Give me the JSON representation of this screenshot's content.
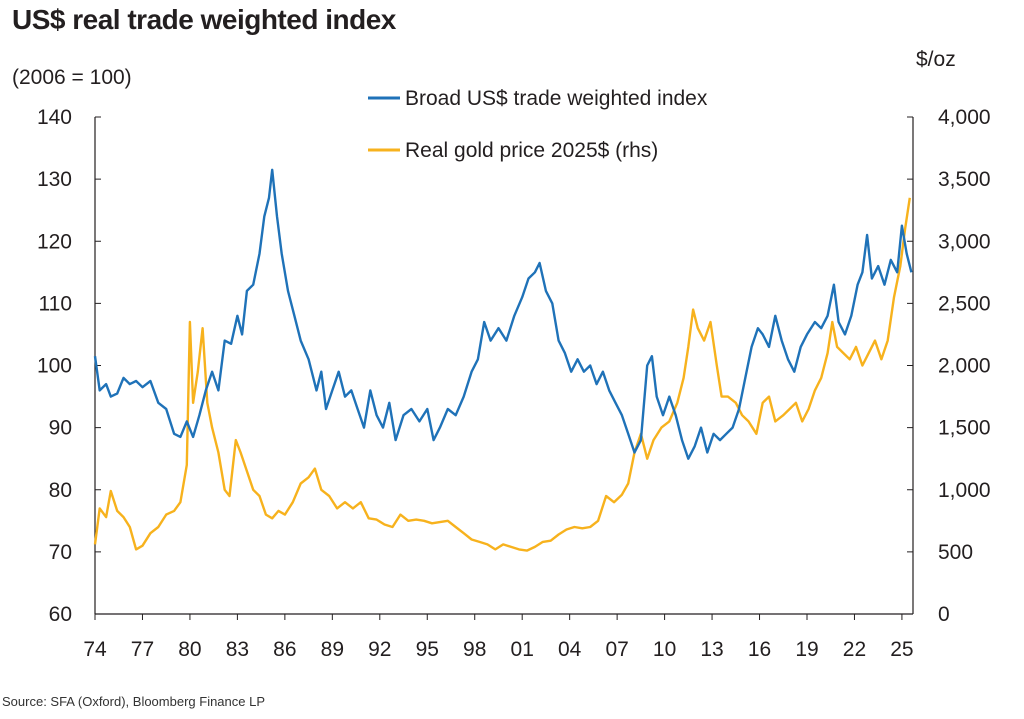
{
  "title": "US$ real trade weighted index",
  "left_unit": "(2006 = 100)",
  "right_unit": "$/oz",
  "source": "Source: SFA (Oxford), Bloomberg Finance LP",
  "chart_data": {
    "type": "line",
    "title": "US$ real trade weighted index",
    "xlabel": "",
    "x_ticks": [
      "74",
      "77",
      "80",
      "83",
      "86",
      "89",
      "92",
      "95",
      "98",
      "01",
      "04",
      "07",
      "10",
      "13",
      "16",
      "19",
      "22",
      "25"
    ],
    "x_tick_years": [
      1974,
      1977,
      1980,
      1983,
      1986,
      1989,
      1992,
      1995,
      1998,
      2001,
      2004,
      2007,
      2010,
      2013,
      2016,
      2019,
      2022,
      2025
    ],
    "xlim": [
      1974,
      2025.7
    ],
    "y_left": {
      "label": "(2006 = 100)",
      "lim": [
        60,
        140
      ],
      "ticks": [
        "60",
        "70",
        "80",
        "90",
        "100",
        "110",
        "120",
        "130",
        "140"
      ]
    },
    "y_right": {
      "label": "$/oz",
      "lim": [
        0,
        4000
      ],
      "ticks": [
        "0",
        "500",
        "1,000",
        "1,500",
        "2,000",
        "2,500",
        "3,000",
        "3,500",
        "4,000"
      ]
    },
    "legend_position": "top-center",
    "series": [
      {
        "name": "Broad US$ trade weighted index",
        "axis": "left",
        "color": "#1f72b8",
        "points": [
          [
            1974.0,
            101.5
          ],
          [
            1974.3,
            96
          ],
          [
            1974.7,
            97
          ],
          [
            1975.0,
            95
          ],
          [
            1975.4,
            95.5
          ],
          [
            1975.8,
            98
          ],
          [
            1976.2,
            97
          ],
          [
            1976.6,
            97.5
          ],
          [
            1977.0,
            96.5
          ],
          [
            1977.5,
            97.5
          ],
          [
            1978.0,
            94
          ],
          [
            1978.5,
            93
          ],
          [
            1979.0,
            89
          ],
          [
            1979.4,
            88.5
          ],
          [
            1979.8,
            91
          ],
          [
            1980.2,
            88.5
          ],
          [
            1980.6,
            92
          ],
          [
            1981.0,
            96
          ],
          [
            1981.4,
            99
          ],
          [
            1981.8,
            96
          ],
          [
            1982.2,
            104
          ],
          [
            1982.6,
            103.5
          ],
          [
            1983.0,
            108
          ],
          [
            1983.3,
            105
          ],
          [
            1983.6,
            112
          ],
          [
            1984.0,
            113
          ],
          [
            1984.4,
            118
          ],
          [
            1984.7,
            124
          ],
          [
            1985.0,
            127
          ],
          [
            1985.2,
            131.5
          ],
          [
            1985.5,
            124
          ],
          [
            1985.8,
            118
          ],
          [
            1986.2,
            112
          ],
          [
            1986.6,
            108
          ],
          [
            1987.0,
            104
          ],
          [
            1987.5,
            101
          ],
          [
            1988.0,
            96
          ],
          [
            1988.3,
            99
          ],
          [
            1988.6,
            93
          ],
          [
            1989.0,
            96
          ],
          [
            1989.4,
            99
          ],
          [
            1989.8,
            95
          ],
          [
            1990.2,
            96
          ],
          [
            1990.6,
            93
          ],
          [
            1991.0,
            90
          ],
          [
            1991.4,
            96
          ],
          [
            1991.8,
            92
          ],
          [
            1992.2,
            90
          ],
          [
            1992.6,
            94
          ],
          [
            1993.0,
            88
          ],
          [
            1993.5,
            92
          ],
          [
            1994.0,
            93
          ],
          [
            1994.5,
            91
          ],
          [
            1995.0,
            93
          ],
          [
            1995.4,
            88
          ],
          [
            1995.8,
            90
          ],
          [
            1996.3,
            93
          ],
          [
            1996.8,
            92
          ],
          [
            1997.3,
            95
          ],
          [
            1997.8,
            99
          ],
          [
            1998.2,
            101
          ],
          [
            1998.6,
            107
          ],
          [
            1999.0,
            104
          ],
          [
            1999.5,
            106
          ],
          [
            2000.0,
            104
          ],
          [
            2000.5,
            108
          ],
          [
            2001.0,
            111
          ],
          [
            2001.4,
            114
          ],
          [
            2001.8,
            115
          ],
          [
            2002.1,
            116.5
          ],
          [
            2002.5,
            112
          ],
          [
            2002.9,
            110
          ],
          [
            2003.3,
            104
          ],
          [
            2003.7,
            102
          ],
          [
            2004.1,
            99
          ],
          [
            2004.5,
            101
          ],
          [
            2004.9,
            99
          ],
          [
            2005.3,
            100
          ],
          [
            2005.7,
            97
          ],
          [
            2006.1,
            99
          ],
          [
            2006.5,
            96
          ],
          [
            2006.9,
            94
          ],
          [
            2007.3,
            92
          ],
          [
            2007.7,
            89
          ],
          [
            2008.1,
            86
          ],
          [
            2008.5,
            88
          ],
          [
            2008.9,
            100
          ],
          [
            2009.2,
            101.5
          ],
          [
            2009.5,
            95
          ],
          [
            2009.9,
            92
          ],
          [
            2010.3,
            95
          ],
          [
            2010.7,
            92
          ],
          [
            2011.1,
            88
          ],
          [
            2011.5,
            85
          ],
          [
            2011.9,
            87
          ],
          [
            2012.3,
            90
          ],
          [
            2012.7,
            86
          ],
          [
            2013.1,
            89
          ],
          [
            2013.5,
            88
          ],
          [
            2013.9,
            89
          ],
          [
            2014.3,
            90
          ],
          [
            2014.7,
            93
          ],
          [
            2015.1,
            98
          ],
          [
            2015.5,
            103
          ],
          [
            2015.9,
            106
          ],
          [
            2016.2,
            105
          ],
          [
            2016.6,
            103
          ],
          [
            2017.0,
            108
          ],
          [
            2017.4,
            104
          ],
          [
            2017.8,
            101
          ],
          [
            2018.2,
            99
          ],
          [
            2018.6,
            103
          ],
          [
            2019.0,
            105
          ],
          [
            2019.5,
            107
          ],
          [
            2019.9,
            106
          ],
          [
            2020.3,
            108
          ],
          [
            2020.7,
            113
          ],
          [
            2021.0,
            107
          ],
          [
            2021.4,
            105
          ],
          [
            2021.8,
            108
          ],
          [
            2022.2,
            113
          ],
          [
            2022.5,
            115
          ],
          [
            2022.8,
            121
          ],
          [
            2023.1,
            114
          ],
          [
            2023.5,
            116
          ],
          [
            2023.9,
            113
          ],
          [
            2024.3,
            117
          ],
          [
            2024.7,
            115
          ],
          [
            2025.0,
            122.5
          ],
          [
            2025.3,
            118
          ],
          [
            2025.6,
            115
          ]
        ]
      },
      {
        "name": "Real gold price 2025$ (rhs)",
        "axis": "right",
        "color": "#f7b21d",
        "points": [
          [
            1974.0,
            560
          ],
          [
            1974.3,
            850
          ],
          [
            1974.7,
            780
          ],
          [
            1975.0,
            990
          ],
          [
            1975.4,
            830
          ],
          [
            1975.8,
            780
          ],
          [
            1976.2,
            700
          ],
          [
            1976.6,
            520
          ],
          [
            1977.0,
            550
          ],
          [
            1977.5,
            650
          ],
          [
            1978.0,
            700
          ],
          [
            1978.5,
            800
          ],
          [
            1979.0,
            830
          ],
          [
            1979.4,
            900
          ],
          [
            1979.8,
            1200
          ],
          [
            1980.0,
            2350
          ],
          [
            1980.2,
            1700
          ],
          [
            1980.5,
            1950
          ],
          [
            1980.8,
            2300
          ],
          [
            1981.1,
            1700
          ],
          [
            1981.4,
            1500
          ],
          [
            1981.8,
            1300
          ],
          [
            1982.2,
            1000
          ],
          [
            1982.5,
            950
          ],
          [
            1982.9,
            1400
          ],
          [
            1983.2,
            1300
          ],
          [
            1983.6,
            1150
          ],
          [
            1984.0,
            1000
          ],
          [
            1984.4,
            950
          ],
          [
            1984.8,
            800
          ],
          [
            1985.2,
            770
          ],
          [
            1985.6,
            830
          ],
          [
            1986.0,
            800
          ],
          [
            1986.5,
            900
          ],
          [
            1987.0,
            1050
          ],
          [
            1987.5,
            1100
          ],
          [
            1987.9,
            1170
          ],
          [
            1988.3,
            1000
          ],
          [
            1988.8,
            950
          ],
          [
            1989.3,
            850
          ],
          [
            1989.8,
            900
          ],
          [
            1990.3,
            850
          ],
          [
            1990.8,
            900
          ],
          [
            1991.3,
            770
          ],
          [
            1991.8,
            760
          ],
          [
            1992.3,
            720
          ],
          [
            1992.8,
            700
          ],
          [
            1993.3,
            800
          ],
          [
            1993.8,
            750
          ],
          [
            1994.3,
            760
          ],
          [
            1994.8,
            750
          ],
          [
            1995.3,
            730
          ],
          [
            1995.8,
            740
          ],
          [
            1996.3,
            750
          ],
          [
            1996.8,
            700
          ],
          [
            1997.3,
            650
          ],
          [
            1997.8,
            600
          ],
          [
            1998.3,
            580
          ],
          [
            1998.8,
            560
          ],
          [
            1999.3,
            520
          ],
          [
            1999.8,
            560
          ],
          [
            2000.3,
            540
          ],
          [
            2000.8,
            520
          ],
          [
            2001.3,
            510
          ],
          [
            2001.8,
            540
          ],
          [
            2002.3,
            580
          ],
          [
            2002.8,
            590
          ],
          [
            2003.3,
            640
          ],
          [
            2003.8,
            680
          ],
          [
            2004.3,
            700
          ],
          [
            2004.8,
            690
          ],
          [
            2005.3,
            700
          ],
          [
            2005.8,
            750
          ],
          [
            2006.3,
            950
          ],
          [
            2006.8,
            900
          ],
          [
            2007.3,
            960
          ],
          [
            2007.7,
            1050
          ],
          [
            2008.1,
            1300
          ],
          [
            2008.5,
            1450
          ],
          [
            2008.9,
            1250
          ],
          [
            2009.3,
            1400
          ],
          [
            2009.8,
            1500
          ],
          [
            2010.3,
            1550
          ],
          [
            2010.8,
            1700
          ],
          [
            2011.2,
            1900
          ],
          [
            2011.5,
            2150
          ],
          [
            2011.8,
            2450
          ],
          [
            2012.1,
            2300
          ],
          [
            2012.5,
            2200
          ],
          [
            2012.9,
            2350
          ],
          [
            2013.3,
            2000
          ],
          [
            2013.6,
            1750
          ],
          [
            2014.0,
            1750
          ],
          [
            2014.5,
            1700
          ],
          [
            2014.9,
            1600
          ],
          [
            2015.3,
            1550
          ],
          [
            2015.8,
            1450
          ],
          [
            2016.2,
            1700
          ],
          [
            2016.6,
            1750
          ],
          [
            2017.0,
            1550
          ],
          [
            2017.5,
            1600
          ],
          [
            2017.9,
            1650
          ],
          [
            2018.3,
            1700
          ],
          [
            2018.7,
            1550
          ],
          [
            2019.1,
            1650
          ],
          [
            2019.5,
            1800
          ],
          [
            2019.9,
            1900
          ],
          [
            2020.3,
            2100
          ],
          [
            2020.6,
            2350
          ],
          [
            2020.9,
            2150
          ],
          [
            2021.3,
            2100
          ],
          [
            2021.7,
            2050
          ],
          [
            2022.1,
            2150
          ],
          [
            2022.5,
            2000
          ],
          [
            2022.9,
            2100
          ],
          [
            2023.3,
            2200
          ],
          [
            2023.7,
            2050
          ],
          [
            2024.1,
            2200
          ],
          [
            2024.5,
            2550
          ],
          [
            2024.9,
            2800
          ],
          [
            2025.2,
            3100
          ],
          [
            2025.5,
            3350
          ]
        ]
      }
    ]
  }
}
